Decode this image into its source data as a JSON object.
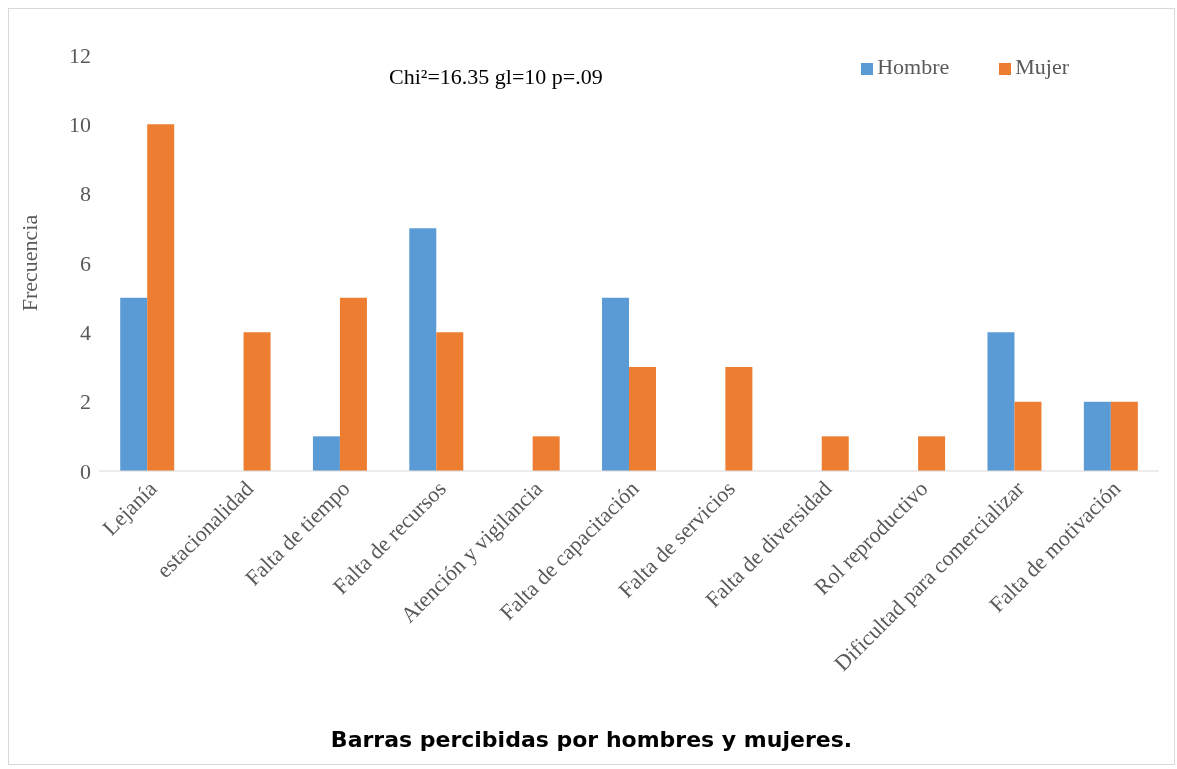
{
  "chart_data": {
    "type": "bar",
    "title": "Barras percibidas por hombres y mujeres.",
    "ylabel": "Frecuencia",
    "annotations": [
      "Chi²=16.35 gl=10 p=.09"
    ],
    "categories": [
      "Lejanía",
      "estacionalidad",
      "Falta de tiempo",
      "Falta de recursos",
      "Atención y vigilancia",
      "Falta de capacitación",
      "Falta de servicios",
      "Falta de diversidad",
      "Rol reproductivo",
      "Dificultad para comercializar",
      "Falta de motivación"
    ],
    "series": [
      {
        "name": "Hombre",
        "color": "#5b9bd5",
        "values": [
          5,
          0,
          1,
          7,
          0,
          5,
          0,
          0,
          0,
          4,
          2
        ]
      },
      {
        "name": "Mujer",
        "color": "#ed7d31",
        "values": [
          10,
          4,
          5,
          4,
          1,
          3,
          3,
          1,
          1,
          2,
          2
        ]
      }
    ],
    "ylim": [
      0,
      12
    ],
    "yticks": [
      0,
      2,
      4,
      6,
      8,
      10,
      12
    ],
    "grid": false,
    "legend": "top right"
  }
}
